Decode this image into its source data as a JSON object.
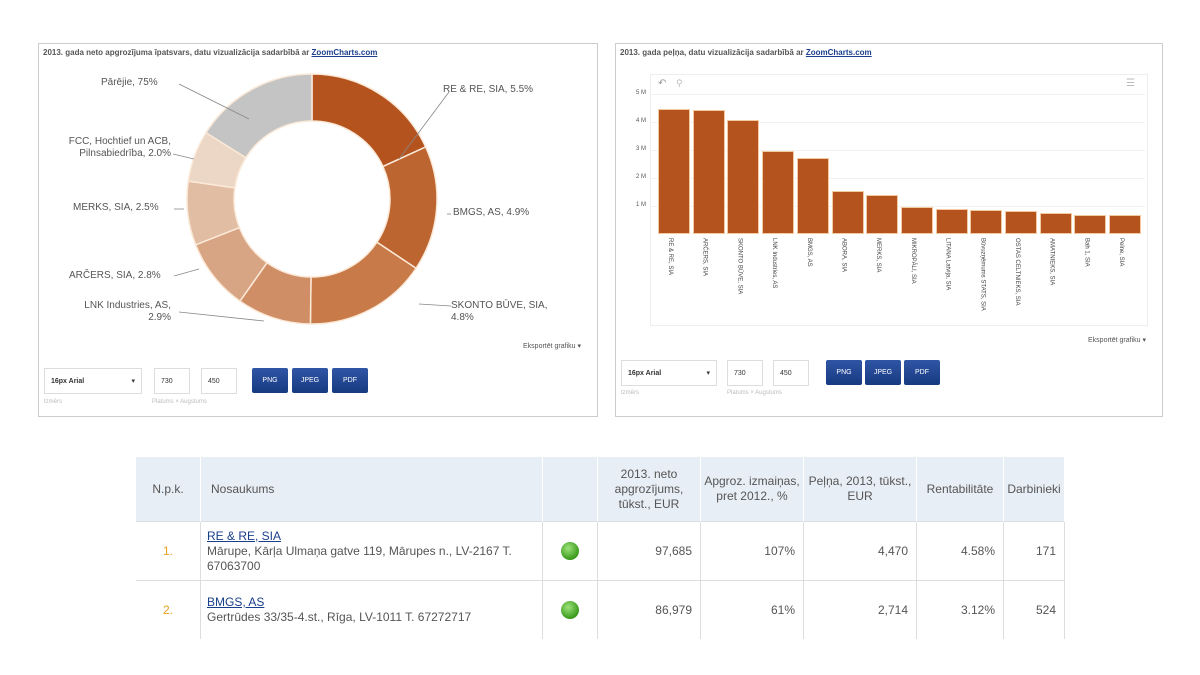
{
  "pie_panel": {
    "title": "2013. gada neto apgrozījuma īpatsvars, datu vizualizācija sadarbībā ar ",
    "link": "ZoomCharts.com",
    "export": "Eksportēt grafiku ▾",
    "font_select": "16px Arial",
    "width": "730",
    "height": "450",
    "buttons": [
      "PNG",
      "JPEG",
      "PDF"
    ],
    "hint_font": "Izmērs",
    "hint_size": "Platums × Augstums"
  },
  "bar_panel": {
    "title": "2013. gada peļņa, datu vizualizācija sadarbībā ar ",
    "link": "ZoomCharts.com",
    "export": "Eksportēt grafiku ▾",
    "font_select": "16px Arial",
    "width": "730",
    "height": "450",
    "buttons": [
      "PNG",
      "JPEG",
      "PDF"
    ],
    "hint_font": "Izmērs",
    "hint_size": "Platums × Augstums"
  },
  "chart_data": [
    {
      "type": "pie",
      "title": "2013. gada neto apgrozījuma īpatsvars",
      "slices": [
        {
          "label": "RE & RE, SIA, 5.5%",
          "value": 5.5,
          "color": "#b5531f"
        },
        {
          "label": "BMGS, AS, 4.9%",
          "value": 4.9,
          "color": "#bd6530"
        },
        {
          "label": "SKONTO BŪVE, SIA, 4.8%",
          "value": 4.8,
          "color": "#c87a48"
        },
        {
          "label": "LNK Industries, AS, 2.9%",
          "value": 2.9,
          "color": "#cf8e66"
        },
        {
          "label": "ARČERS, SIA, 2.8%",
          "value": 2.8,
          "color": "#d8a584"
        },
        {
          "label": "MERKS, SIA, 2.5%",
          "value": 2.5,
          "color": "#e1bda3"
        },
        {
          "label": "FCC, Hochtief un ACB, Pilnsabiedrība, 2.0%",
          "value": 2.0,
          "color": "#ecd6c5"
        },
        {
          "label": "Pārējie, 75%",
          "value": 75,
          "color": "#c4c4c4"
        }
      ]
    },
    {
      "type": "bar",
      "title": "2013. gada peļņa",
      "yticks": [
        "1 M",
        "2 M",
        "3 M",
        "4 M",
        "5 M"
      ],
      "ylim": [
        0,
        5.4
      ],
      "unit": "M EUR",
      "categories": [
        "RE & RE, SIA",
        "ARČERS, SIA",
        "SKONTO BŪVE, SIA",
        "LNK Industries, AS",
        "BMGS, AS",
        "ABORA, SIA",
        "MERKS, SIA",
        "MIKROPĀLI, SIA",
        "LITANA Latvija, SIA",
        "Būvuzņēmums STATS, SIA",
        "OSTAS CELTNIEKS, SIA",
        "AMATNIEKS, SIA",
        "Bah 1, SIA",
        "Pelne, SIA"
      ],
      "values": [
        4.47,
        4.42,
        4.08,
        2.95,
        2.71,
        1.55,
        1.4,
        0.98,
        0.89,
        0.85,
        0.82,
        0.74,
        0.68,
        0.68
      ],
      "color": "#b5531f"
    }
  ],
  "table": {
    "headers": [
      "N.p.k.",
      "Nosaukums",
      "",
      "2013. neto apgrozījums, tūkst., EUR",
      "Apgroz. izmaiņas, pret 2012., %",
      "Peļņa, 2013, tūkst., EUR",
      "Rentabilitāte",
      "Darbinieki"
    ],
    "rows": [
      {
        "rank": "1.",
        "name": "RE & RE, SIA",
        "address": "Mārupe, Kārļa Ulmaņa gatve 119, Mārupes n., LV-2167 T. 67063700",
        "turnover": "97,685",
        "change": "107%",
        "profit": "4,470",
        "rent": "4.58%",
        "employees": "171"
      },
      {
        "rank": "2.",
        "name": "BMGS, AS",
        "address": "Gertrūdes 33/35-4.st., Rīga, LV-1011 T. 67272717",
        "turnover": "86,979",
        "change": "61%",
        "profit": "2,714",
        "rent": "3.12%",
        "employees": "524"
      }
    ]
  }
}
